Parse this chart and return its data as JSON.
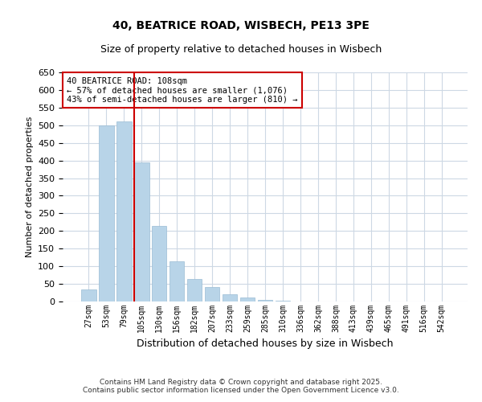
{
  "title": "40, BEATRICE ROAD, WISBECH, PE13 3PE",
  "subtitle": "Size of property relative to detached houses in Wisbech",
  "xlabel": "Distribution of detached houses by size in Wisbech",
  "ylabel": "Number of detached properties",
  "categories": [
    "27sqm",
    "53sqm",
    "79sqm",
    "105sqm",
    "130sqm",
    "156sqm",
    "182sqm",
    "207sqm",
    "233sqm",
    "259sqm",
    "285sqm",
    "310sqm",
    "336sqm",
    "362sqm",
    "388sqm",
    "413sqm",
    "439sqm",
    "465sqm",
    "491sqm",
    "516sqm",
    "542sqm"
  ],
  "values": [
    35,
    500,
    510,
    395,
    215,
    115,
    65,
    40,
    20,
    12,
    5,
    3,
    1,
    0,
    0,
    0,
    0,
    0,
    0,
    0,
    0
  ],
  "bar_color": "#b8d4e8",
  "bar_edge_color": "#9abcd4",
  "red_line_index": 3,
  "red_line_color": "#cc0000",
  "annotation_line1": "40 BEATRICE ROAD: 108sqm",
  "annotation_line2": "← 57% of detached houses are smaller (1,076)",
  "annotation_line3": "43% of semi-detached houses are larger (810) →",
  "annotation_box_color": "#cc0000",
  "ylim": [
    0,
    650
  ],
  "yticks": [
    0,
    50,
    100,
    150,
    200,
    250,
    300,
    350,
    400,
    450,
    500,
    550,
    600,
    650
  ],
  "background_color": "#ffffff",
  "grid_color": "#cdd8e4",
  "footnote1": "Contains HM Land Registry data © Crown copyright and database right 2025.",
  "footnote2": "Contains public sector information licensed under the Open Government Licence v3.0."
}
